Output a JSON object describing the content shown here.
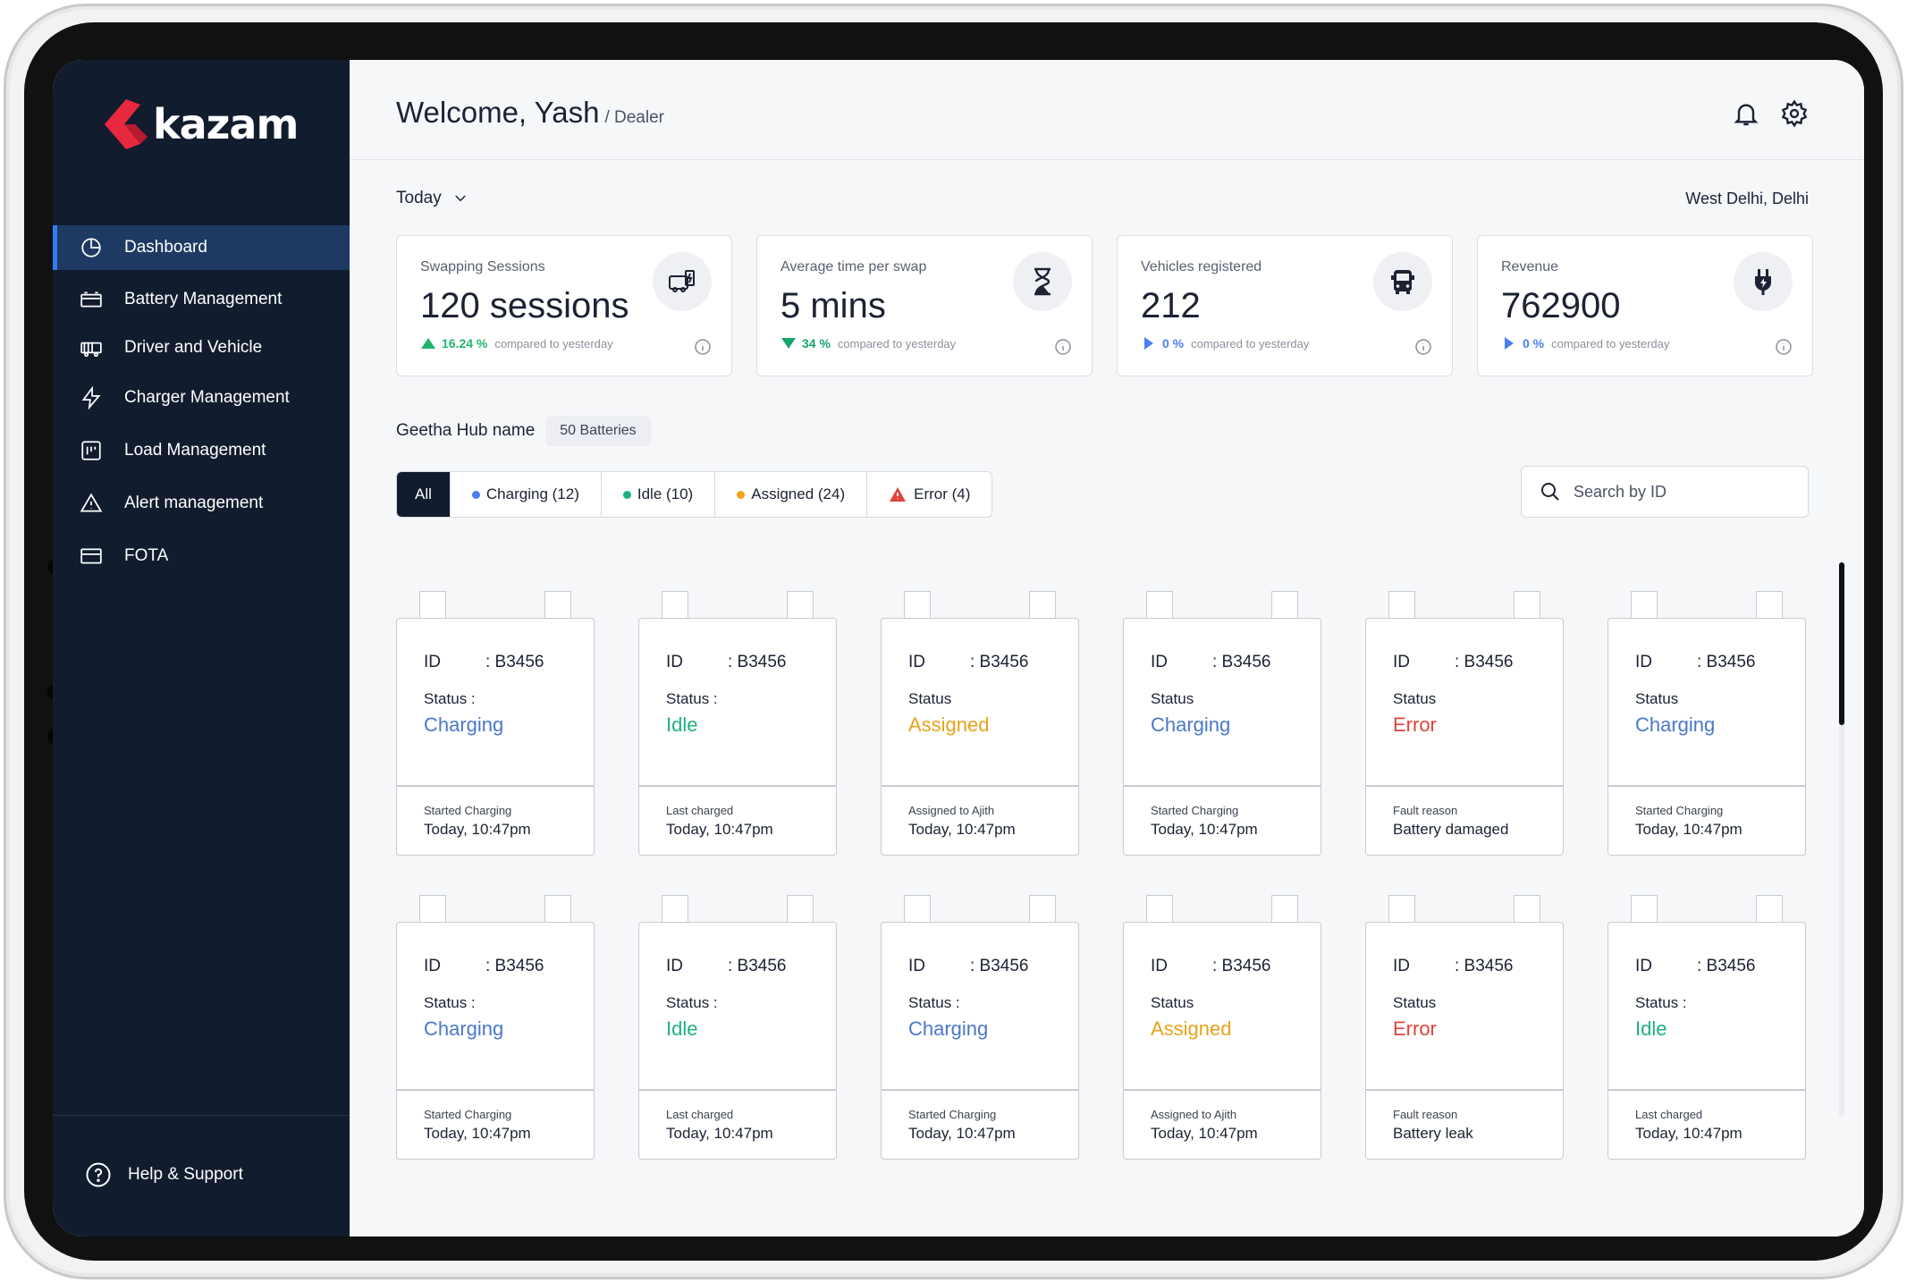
{
  "brand": {
    "name": "kazam",
    "logo_color": "#e8283f"
  },
  "sidebar": {
    "items": [
      {
        "label": "Dashboard",
        "icon": "pie-chart-icon",
        "active": true
      },
      {
        "label": "Battery Management",
        "icon": "battery-icon",
        "active": false
      },
      {
        "label": "Driver and Vehicle",
        "icon": "vehicle-icon",
        "active": false
      },
      {
        "label": "Charger Management",
        "icon": "lightning-icon",
        "active": false
      },
      {
        "label": "Load Management",
        "icon": "load-icon",
        "active": false
      },
      {
        "label": "Alert management",
        "icon": "alert-triangle-icon",
        "active": false
      },
      {
        "label": "FOTA",
        "icon": "card-icon",
        "active": false
      }
    ],
    "help_label": "Help & Support"
  },
  "header": {
    "welcome": "Welcome, Yash",
    "role": "/ Dealer",
    "icons": [
      "bell-icon",
      "gear-icon"
    ]
  },
  "toolbar": {
    "period": "Today",
    "location": "West Delhi, Delhi"
  },
  "stats": [
    {
      "label": "Swapping Sessions",
      "value": "120 sessions",
      "pct": "16.24 %",
      "trend": "up",
      "compare": "compared to yesterday",
      "icon": "swap-station-icon"
    },
    {
      "label": "Average time per swap",
      "value": "5 mins",
      "pct": "34 %",
      "trend": "down",
      "compare": "compared to yesterday",
      "icon": "hourglass-icon"
    },
    {
      "label": "Vehicles registered",
      "value": "212",
      "pct": "0 %",
      "trend": "neutral",
      "compare": "compared to yesterday",
      "icon": "bus-icon"
    },
    {
      "label": "Revenue",
      "value": "762900",
      "pct": "0 %",
      "trend": "neutral",
      "compare": "compared to yesterday",
      "icon": "plug-icon"
    }
  ],
  "hub": {
    "name": "Geetha Hub name",
    "badge": "50 Batteries"
  },
  "filters": [
    {
      "label": "All",
      "active": true,
      "marker": "none"
    },
    {
      "label": "Charging (12)",
      "marker": "dot",
      "color": "#4b7ef0"
    },
    {
      "label": "Idle (10)",
      "marker": "dot",
      "color": "#1fae85"
    },
    {
      "label": "Assigned (24)",
      "marker": "dot",
      "color": "#f2a21b"
    },
    {
      "label": "Error (4)",
      "marker": "triangle",
      "color": "#e0443c"
    }
  ],
  "search": {
    "placeholder": "Search by ID"
  },
  "batteries": [
    {
      "id_label": "ID",
      "id": ": B3456",
      "status_label": "Status :",
      "status": "Charging",
      "foot_label": "Started Charging",
      "foot_value": "Today, 10:47pm"
    },
    {
      "id_label": "ID",
      "id": ": B3456",
      "status_label": "Status :",
      "status": "Idle",
      "foot_label": "Last charged",
      "foot_value": "Today, 10:47pm"
    },
    {
      "id_label": "ID",
      "id": ": B3456",
      "status_label": "Status",
      "status": "Assigned",
      "foot_label": "Assigned to Ajith",
      "foot_value": "Today, 10:47pm"
    },
    {
      "id_label": "ID",
      "id": ": B3456",
      "status_label": "Status",
      "status": "Charging",
      "foot_label": "Started Charging",
      "foot_value": "Today, 10:47pm"
    },
    {
      "id_label": "ID",
      "id": ": B3456",
      "status_label": "Status",
      "status": "Error",
      "foot_label": "Fault reason",
      "foot_value": "Battery damaged"
    },
    {
      "id_label": "ID",
      "id": ": B3456",
      "status_label": "Status",
      "status": "Charging",
      "foot_label": "Started Charging",
      "foot_value": "Today, 10:47pm"
    },
    {
      "id_label": "ID",
      "id": ": B3456",
      "status_label": "Status :",
      "status": "Charging",
      "foot_label": "Started Charging",
      "foot_value": "Today, 10:47pm"
    },
    {
      "id_label": "ID",
      "id": ": B3456",
      "status_label": "Status :",
      "status": "Idle",
      "foot_label": "Last charged",
      "foot_value": "Today, 10:47pm"
    },
    {
      "id_label": "ID",
      "id": ": B3456",
      "status_label": "Status :",
      "status": "Charging",
      "foot_label": "Started Charging",
      "foot_value": "Today, 10:47pm"
    },
    {
      "id_label": "ID",
      "id": ": B3456",
      "status_label": "Status",
      "status": "Assigned",
      "foot_label": "Assigned to Ajith",
      "foot_value": "Today, 10:47pm"
    },
    {
      "id_label": "ID",
      "id": ": B3456",
      "status_label": "Status",
      "status": "Error",
      "foot_label": "Fault reason",
      "foot_value": "Battery leak"
    },
    {
      "id_label": "ID",
      "id": ": B3456",
      "status_label": "Status :",
      "status": "Idle",
      "foot_label": "Last charged",
      "foot_value": "Today, 10:47pm"
    }
  ]
}
